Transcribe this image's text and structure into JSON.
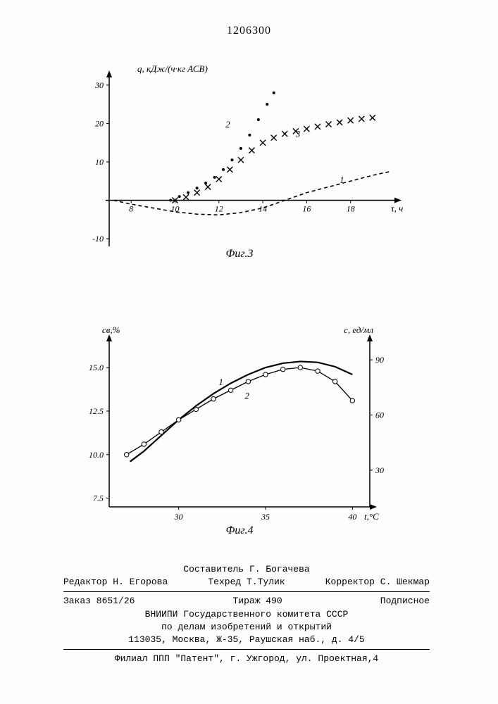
{
  "doc_id": "1206300",
  "fig3": {
    "type": "line",
    "caption": "Фиг.3",
    "yaxis_label": "q, кДж/(ч·кг АСВ)",
    "xaxis_label": "τ, ч",
    "xlim": [
      7,
      20
    ],
    "ylim": [
      -12,
      32
    ],
    "xtick_step": 2,
    "xticks": [
      8,
      10,
      12,
      14,
      16,
      18
    ],
    "yticks": [
      -10,
      0,
      10,
      20,
      30
    ],
    "background_color": "#fdfdfc",
    "axis_color": "#000000",
    "label_fontsize": 13,
    "tick_fontsize": 12,
    "series": [
      {
        "label": "1",
        "label_pos": [
          17.5,
          4.5
        ],
        "marker": "none",
        "dash": "5,4",
        "line_width": 1.6,
        "color": "#000000",
        "points": [
          [
            7.2,
            0
          ],
          [
            8,
            -1
          ],
          [
            9,
            -2
          ],
          [
            10,
            -3
          ],
          [
            11,
            -3.6
          ],
          [
            12,
            -3.8
          ],
          [
            13,
            -3.2
          ],
          [
            14,
            -2
          ],
          [
            15,
            0
          ],
          [
            16,
            2
          ],
          [
            17,
            3.5
          ],
          [
            18,
            5
          ],
          [
            19,
            6.5
          ],
          [
            19.8,
            7.5
          ]
        ]
      },
      {
        "label": "2",
        "label_pos": [
          12.3,
          19
        ],
        "marker": "dot",
        "marker_size": 2.0,
        "dash": "none",
        "line_width": 0,
        "color": "#000000",
        "points": [
          [
            9.8,
            0
          ],
          [
            10.2,
            1
          ],
          [
            10.6,
            2
          ],
          [
            11,
            3.2
          ],
          [
            11.4,
            4.5
          ],
          [
            11.8,
            6
          ],
          [
            12.2,
            8
          ],
          [
            12.6,
            10.5
          ],
          [
            13,
            13.5
          ],
          [
            13.4,
            17
          ],
          [
            13.8,
            21
          ],
          [
            14.2,
            25
          ],
          [
            14.5,
            28
          ]
        ]
      },
      {
        "label": "3",
        "label_pos": [
          15.5,
          16.5
        ],
        "marker": "x",
        "marker_size": 4,
        "dash": "none",
        "line_width": 0,
        "color": "#000000",
        "points": [
          [
            10,
            0
          ],
          [
            10.5,
            0.8
          ],
          [
            11,
            2
          ],
          [
            11.5,
            3.5
          ],
          [
            12,
            5.5
          ],
          [
            12.5,
            8
          ],
          [
            13,
            10.5
          ],
          [
            13.5,
            13
          ],
          [
            14,
            15
          ],
          [
            14.5,
            16.3
          ],
          [
            15,
            17.3
          ],
          [
            15.5,
            18
          ],
          [
            16,
            18.6
          ],
          [
            16.5,
            19.2
          ],
          [
            17,
            19.8
          ],
          [
            17.5,
            20.3
          ],
          [
            18,
            20.8
          ],
          [
            18.5,
            21.2
          ],
          [
            19,
            21.5
          ]
        ]
      }
    ]
  },
  "fig4": {
    "type": "line",
    "caption": "Фиг.4",
    "yaxis_left_label": "св,%",
    "yaxis_right_label": "с, ед/мл",
    "xaxis_label": "t,°С",
    "xlim": [
      26,
      41
    ],
    "ylim_left": [
      7.0,
      16.5
    ],
    "ylim_right": [
      10,
      100
    ],
    "xticks": [
      30,
      35,
      40
    ],
    "yticks_left": [
      7.5,
      10.0,
      12.5,
      15.0
    ],
    "yticks_right": [
      30,
      60,
      90
    ],
    "background_color": "#fdfdfc",
    "axis_color": "#000000",
    "label_fontsize": 13,
    "tick_fontsize": 12,
    "series": [
      {
        "label": "1",
        "label_pos": [
          32.3,
          14.0
        ],
        "marker": "none",
        "dash": "none",
        "line_width": 2.2,
        "color": "#000000",
        "points": [
          [
            27.2,
            9.6
          ],
          [
            28,
            10.2
          ],
          [
            29,
            11.1
          ],
          [
            30,
            12.0
          ],
          [
            31,
            12.8
          ],
          [
            32,
            13.5
          ],
          [
            33,
            14.1
          ],
          [
            34,
            14.6
          ],
          [
            35,
            15.0
          ],
          [
            36,
            15.25
          ],
          [
            37,
            15.35
          ],
          [
            38,
            15.3
          ],
          [
            39,
            15.05
          ],
          [
            40,
            14.6
          ]
        ]
      },
      {
        "label": "2",
        "label_pos": [
          33.8,
          13.2
        ],
        "marker": "circle",
        "marker_size": 3.2,
        "dash": "none",
        "line_width": 1.3,
        "color": "#000000",
        "points": [
          [
            27,
            10.0
          ],
          [
            28,
            10.6
          ],
          [
            29,
            11.3
          ],
          [
            30,
            12.0
          ],
          [
            31,
            12.6
          ],
          [
            32,
            13.2
          ],
          [
            33,
            13.7
          ],
          [
            34,
            14.2
          ],
          [
            35,
            14.6
          ],
          [
            36,
            14.9
          ],
          [
            37,
            15.0
          ],
          [
            38,
            14.8
          ],
          [
            39,
            14.2
          ],
          [
            40,
            13.1
          ]
        ]
      }
    ]
  },
  "footer": {
    "compiler": "Составитель Г. Богачева",
    "editor_label": "Редактор",
    "editor": "Н. Егорова",
    "techred_label": "Техред",
    "techred": "Т.Тулик",
    "corrector_label": "Корректор",
    "corrector": "С. Шекмар",
    "order": "Заказ 8651/26",
    "tirazh": "Тираж 490",
    "podpisnoe": "Подписное",
    "org1": "ВНИИПИ Государственного комитета СССР",
    "org2": "по делам изобретений и открытий",
    "address": "113035, Москва, Ж-35, Раушская наб., д. 4/5",
    "branch": "Филиал ППП \"Патент\", г. Ужгород, ул. Проектная,4"
  }
}
